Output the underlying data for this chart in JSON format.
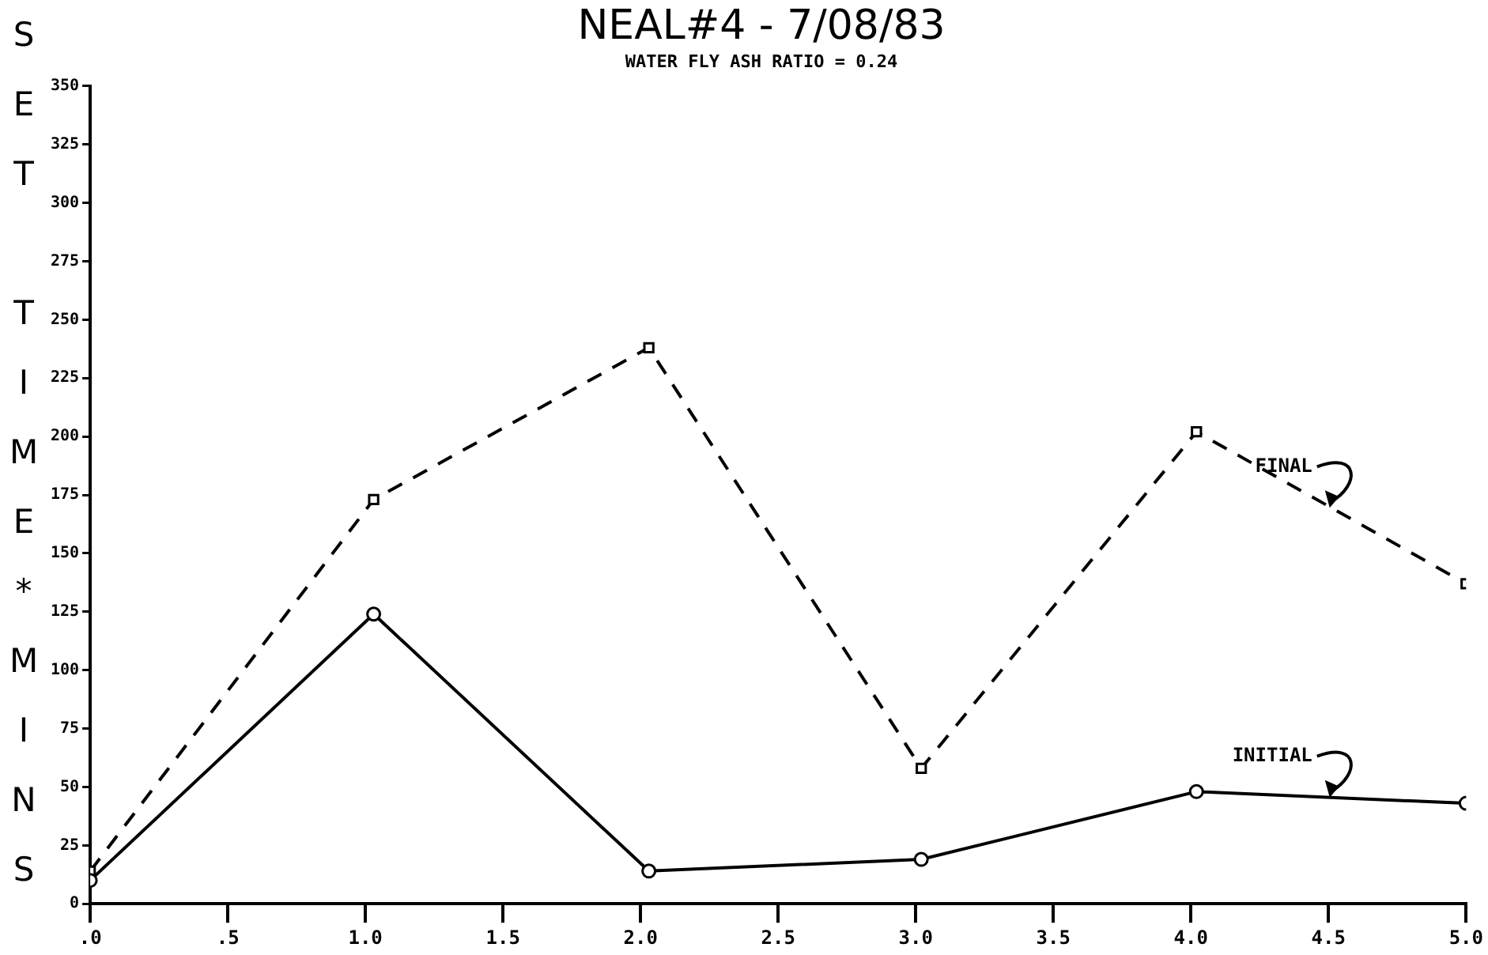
{
  "chart_data": {
    "type": "line",
    "title": "NEAL#4 - 7/08/83",
    "subtitle": "WATER FLY ASH RATIO = 0.24",
    "ylabel": "SET TIME*MINS",
    "x": [
      0,
      1.03,
      2.03,
      3.02,
      4.02,
      5.0
    ],
    "series": [
      {
        "name": "INITIAL",
        "color": "#000000",
        "values": [
          10,
          124,
          14,
          19,
          48,
          43
        ],
        "marker": "circle",
        "line_style": "solid"
      },
      {
        "name": "FINAL",
        "color": "#000000",
        "values": [
          14,
          173,
          238,
          58,
          202,
          137
        ],
        "marker": "square",
        "line_style": "dashed"
      }
    ],
    "xlim": [
      0,
      5
    ],
    "xticks": [
      {
        "value": 0,
        "label": ".0"
      },
      {
        "value": 0.5,
        "label": ".5"
      },
      {
        "value": 1,
        "label": "1.0"
      },
      {
        "value": 1.5,
        "label": "1.5"
      },
      {
        "value": 2,
        "label": "2.0"
      },
      {
        "value": 2.5,
        "label": "2.5"
      },
      {
        "value": 3,
        "label": "3.0"
      },
      {
        "value": 3.5,
        "label": "3.5"
      },
      {
        "value": 4,
        "label": "4.0"
      },
      {
        "value": 4.5,
        "label": "4.5"
      },
      {
        "value": 5,
        "label": "5.0"
      }
    ],
    "ylim": [
      0,
      350
    ],
    "yticks": [
      0,
      25,
      50,
      75,
      100,
      125,
      150,
      175,
      200,
      225,
      250,
      275,
      300,
      325,
      350
    ],
    "grid": false,
    "legend": false
  }
}
